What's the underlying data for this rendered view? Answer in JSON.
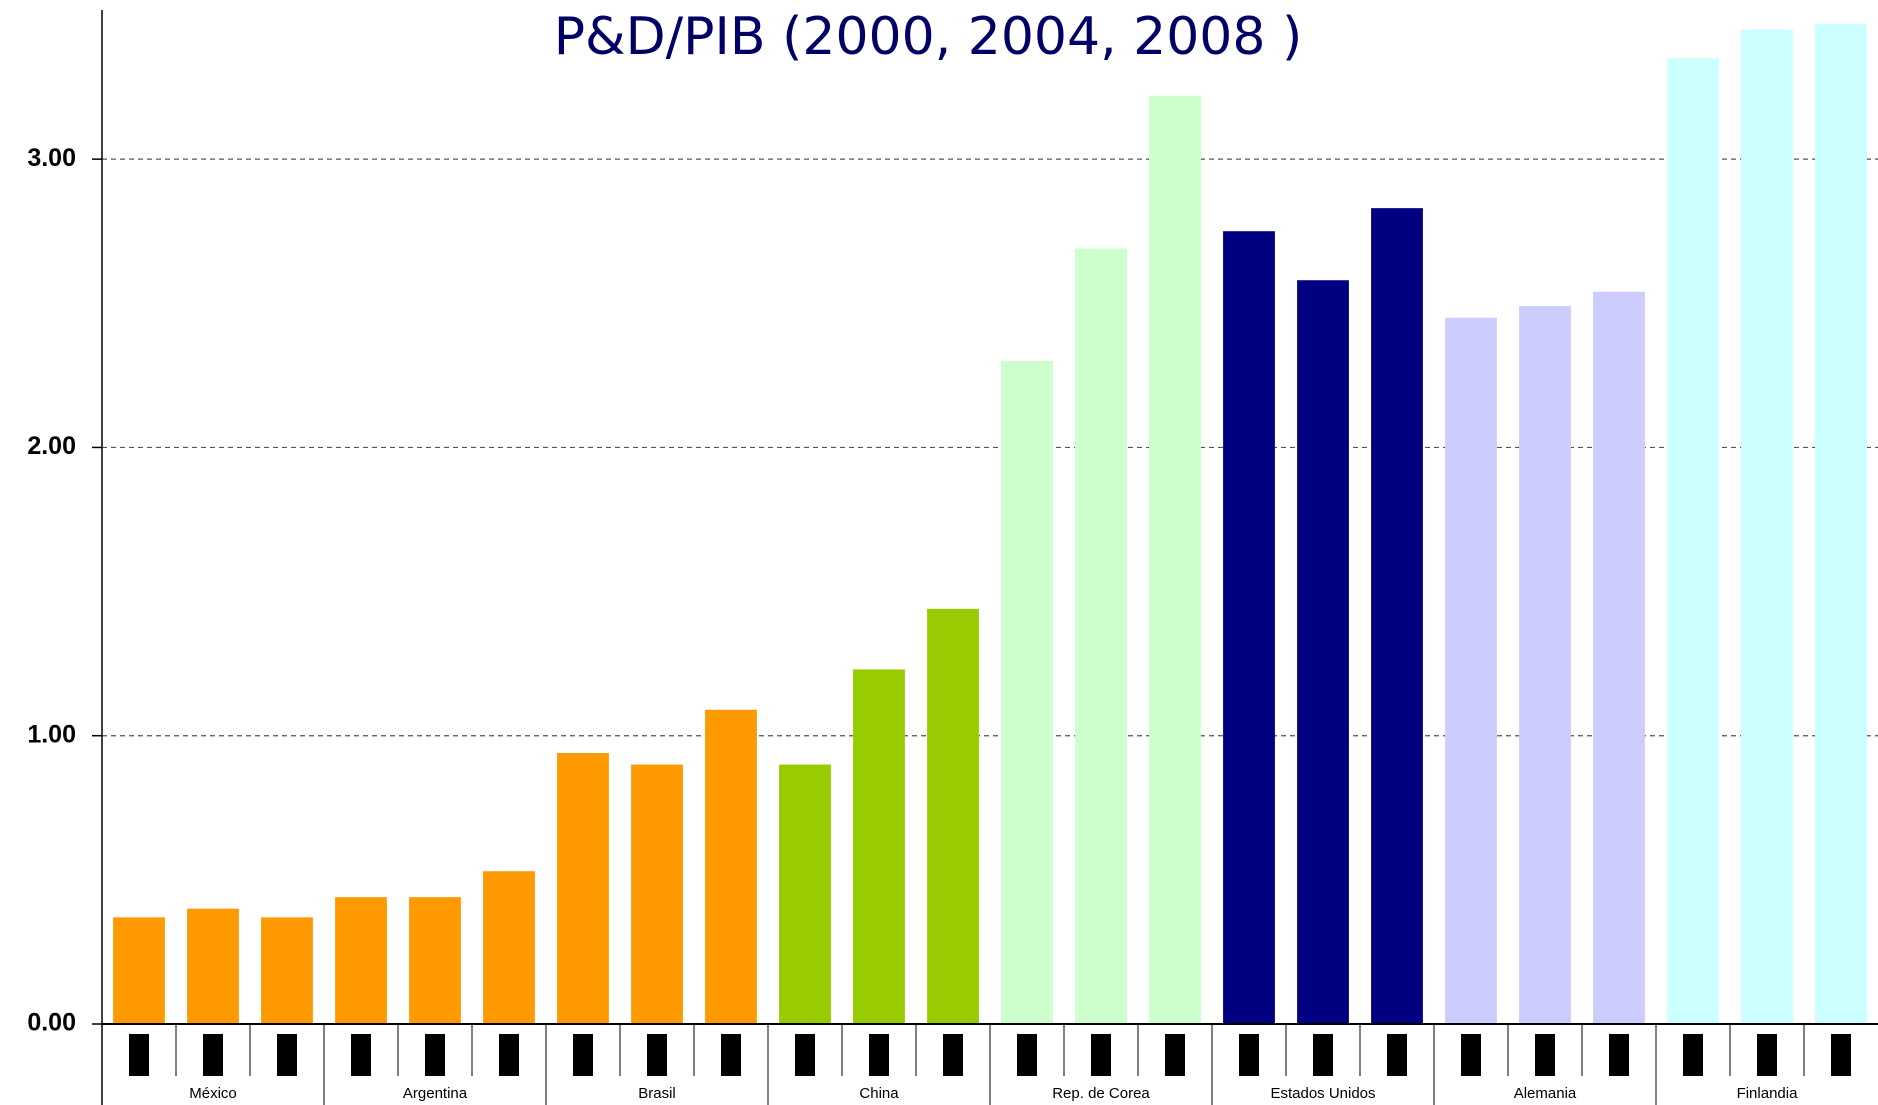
{
  "chart_data": {
    "type": "bar",
    "title": "P&D/PIB (2000, 2004, 2008 )",
    "groups": [
      {
        "name": "México",
        "color": "#ff9900",
        "values": [
          0.37,
          0.4,
          0.37
        ]
      },
      {
        "name": "Argentina",
        "color": "#ff9900",
        "values": [
          0.44,
          0.44,
          0.53
        ]
      },
      {
        "name": "Brasil",
        "color": "#ff9900",
        "values": [
          0.94,
          0.9,
          1.09
        ]
      },
      {
        "name": "China",
        "color": "#99cc00",
        "values": [
          0.9,
          1.23,
          1.44
        ]
      },
      {
        "name": "Rep. de Corea",
        "color": "#ccffcc",
        "values": [
          2.3,
          2.69,
          3.22
        ]
      },
      {
        "name": "Estados Unidos",
        "color": "#000080",
        "values": [
          2.75,
          2.58,
          2.83
        ]
      },
      {
        "name": "Alemania",
        "color": "#ccccff",
        "values": [
          2.45,
          2.49,
          2.54
        ]
      },
      {
        "name": "Finlandia",
        "color": "#ccffff",
        "values": [
          3.35,
          3.45,
          3.47
        ]
      }
    ],
    "ylim": [
      0,
      3.5
    ],
    "yticks": [
      {
        "value": 0,
        "label": "0.00"
      },
      {
        "value": 1,
        "label": "1.00"
      },
      {
        "value": 2,
        "label": "2.00"
      },
      {
        "value": 3,
        "label": "3.00"
      }
    ],
    "grid": true
  }
}
